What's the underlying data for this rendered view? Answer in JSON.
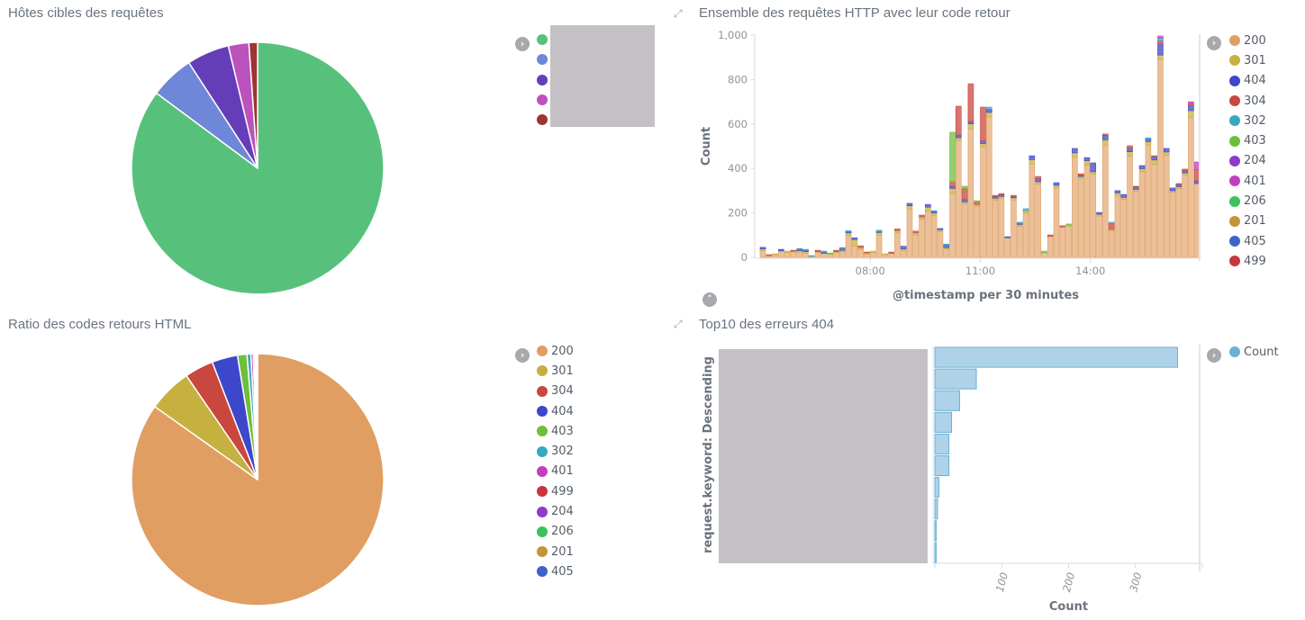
{
  "panels": {
    "hosts": {
      "title": "Hôtes cibles des requêtes"
    },
    "requests": {
      "title": "Ensemble des requêtes HTTP avec leur code retour"
    },
    "ratio": {
      "title": "Ratio des codes retours HTML"
    },
    "top404": {
      "title": "Top10 des erreurs 404"
    }
  },
  "colors": {
    "200": "#e09e62",
    "301": "#c6b03f",
    "404": "#3d47c9",
    "304": "#c9473e",
    "302": "#36a8c0",
    "403": "#6dbf3c",
    "204": "#8e3bc9",
    "401": "#c23fbd",
    "206": "#3cc15b",
    "201": "#c4943a",
    "405": "#3c63c9",
    "499": "#c8353e",
    "count": "#6baed6"
  },
  "chart_data": [
    {
      "type": "pie",
      "title": "Hôtes cibles des requêtes",
      "labels_redacted": true,
      "slices": [
        {
          "label": "",
          "value": 84.5,
          "color": "#57c17b"
        },
        {
          "label": "",
          "value": 5.6,
          "color": "#6f87d8"
        },
        {
          "label": "",
          "value": 5.4,
          "color": "#663db8"
        },
        {
          "label": "",
          "value": 2.6,
          "color": "#bc52bc"
        },
        {
          "label": "",
          "value": 1.1,
          "color": "#9e3533"
        }
      ]
    },
    {
      "type": "bar",
      "stacked": true,
      "title": "Ensemble des requêtes HTTP avec leur code retour",
      "xlabel": "@timestamp per 30 minutes",
      "ylabel": "Count",
      "ylim": [
        0,
        1000
      ],
      "yticks": [
        "0",
        "200",
        "400",
        "600",
        "800",
        "1,000"
      ],
      "yticks_values": [
        0,
        200,
        400,
        600,
        800,
        1000
      ],
      "xticks": [
        {
          "label": "08:00",
          "index": 18
        },
        {
          "label": "11:00",
          "index": 36
        },
        {
          "label": "14:00",
          "index": 54
        }
      ],
      "legend": [
        "200",
        "301",
        "404",
        "304",
        "302",
        "403",
        "204",
        "401",
        "206",
        "201",
        "405",
        "499"
      ],
      "legend_position": "right",
      "series_order": [
        "200",
        "301",
        "404",
        "304",
        "302",
        "403",
        "401"
      ],
      "bars": [
        {
          "200": 30,
          "301": 8,
          "404": 7
        },
        {
          "200": 8,
          "304": 4
        },
        {
          "200": 12,
          "301": 4
        },
        {
          "200": 26,
          "301": 4,
          "404": 6
        },
        {
          "200": 22,
          "301": 6
        },
        {
          "200": 24,
          "301": 4,
          "304": 4
        },
        {
          "200": 24,
          "301": 6,
          "404": 8,
          "302": 2
        },
        {
          "200": 20,
          "301": 6,
          "404": 8,
          "302": 2
        },
        {
          "200": 4,
          "302": 4
        },
        {
          "200": 22,
          "301": 4,
          "304": 6
        },
        {
          "200": 18,
          "404": 6,
          "302": 4
        },
        {
          "200": 14,
          "403": 6
        },
        {
          "200": 22,
          "301": 4,
          "304": 6
        },
        {
          "200": 26,
          "301": 6,
          "404": 10,
          "302": 2
        },
        {
          "200": 98,
          "301": 12,
          "404": 6,
          "302": 4
        },
        {
          "200": 50,
          "301": 30,
          "404": 8
        },
        {
          "200": 36,
          "301": 8,
          "304": 8
        },
        {
          "200": 14,
          "301": 6,
          "304": 4
        },
        {
          "200": 22,
          "301": 6
        },
        {
          "200": 100,
          "301": 12,
          "404": 6,
          "302": 4
        },
        {
          "200": 12,
          "301": 4
        },
        {
          "200": 18,
          "304": 6
        },
        {
          "200": 110,
          "301": 10,
          "304": 8
        },
        {
          "200": 30,
          "301": 8,
          "404": 12
        },
        {
          "200": 218,
          "301": 14,
          "404": 11
        },
        {
          "200": 100,
          "301": 10,
          "304": 8
        },
        {
          "200": 172,
          "301": 10,
          "304": 8
        },
        {
          "200": 208,
          "301": 18,
          "404": 12
        },
        {
          "200": 190,
          "301": 10,
          "404": 8,
          "302": 2
        },
        {
          "200": 116,
          "301": 8,
          "404": 6
        },
        {
          "200": 38,
          "301": 6,
          "404": 12,
          "302": 4
        },
        {
          "200": 288,
          "301": 22,
          "404": 10,
          "304": 20,
          "403": 223
        },
        {
          "200": 526,
          "301": 12,
          "404": 12,
          "304": 130
        },
        {
          "200": 240,
          "301": 10,
          "404": 10,
          "304": 50,
          "403": 10
        },
        {
          "200": 579,
          "301": 22,
          "404": 10,
          "304": 170
        },
        {
          "200": 230,
          "301": 8,
          "304": 12,
          "403": 5
        },
        {
          "200": 498,
          "301": 14,
          "404": 12,
          "304": 152
        },
        {
          "200": 632,
          "301": 20,
          "404": 14,
          "302": 10
        },
        {
          "200": 256,
          "301": 10,
          "404": 8,
          "304": 5
        },
        {
          "200": 264,
          "301": 10,
          "404": 8,
          "304": 5
        },
        {
          "200": 88,
          "404": 5
        },
        {
          "200": 258,
          "301": 10,
          "404": 6,
          "304": 5
        },
        {
          "200": 140,
          "301": 8,
          "404": 6,
          "302": 4
        },
        {
          "200": 200,
          "301": 10,
          "302": 9
        },
        {
          "200": 420,
          "301": 20,
          "404": 17
        },
        {
          "200": 330,
          "301": 10,
          "404": 14,
          "304": 10
        },
        {
          "200": 20,
          "403": 8
        },
        {
          "200": 94,
          "304": 7
        },
        {
          "200": 312,
          "301": 12,
          "404": 12
        },
        {
          "200": 134,
          "301": 4,
          "304": 4
        },
        {
          "200": 140,
          "301": 6,
          "403": 4
        },
        {
          "200": 450,
          "301": 20,
          "404": 20
        },
        {
          "200": 356,
          "301": 8,
          "404": 6,
          "304": 6
        },
        {
          "200": 415,
          "301": 20,
          "404": 14
        },
        {
          "200": 375,
          "301": 10,
          "404": 40
        },
        {
          "200": 186,
          "301": 8,
          "404": 8
        },
        {
          "200": 505,
          "301": 24,
          "404": 20,
          "304": 6
        },
        {
          "200": 120,
          "301": 6,
          "304": 26,
          "302": 6
        },
        {
          "200": 280,
          "301": 10,
          "404": 10
        },
        {
          "200": 260,
          "301": 10,
          "404": 13
        },
        {
          "200": 455,
          "301": 20,
          "404": 16,
          "304": 11
        },
        {
          "200": 296,
          "301": 10,
          "404": 10,
          "304": 4
        },
        {
          "200": 385,
          "301": 14,
          "404": 14
        },
        {
          "200": 505,
          "301": 16,
          "404": 12,
          "302": 5
        },
        {
          "200": 418,
          "301": 20,
          "404": 16,
          "304": 3
        },
        {
          "200": 890,
          "301": 20,
          "404": 50,
          "302": 12,
          "401": 10,
          "304": 14
        },
        {
          "200": 460,
          "301": 14,
          "404": 16
        },
        {
          "200": 294,
          "301": 6,
          "404": 12
        },
        {
          "200": 310,
          "301": 8,
          "404": 10,
          "304": 4
        },
        {
          "200": 370,
          "301": 10,
          "404": 10,
          "304": 7
        },
        {
          "200": 630,
          "301": 30,
          "404": 25,
          "304": 10,
          "401": 5
        },
        {
          "200": 332,
          "404": 12,
          "304": 50,
          "401": 35
        }
      ]
    },
    {
      "type": "pie",
      "title": "Ratio des codes retours HTML",
      "slices": [
        {
          "label": "200",
          "value": 84.8
        },
        {
          "label": "301",
          "value": 5.6
        },
        {
          "label": "304",
          "value": 3.7
        },
        {
          "label": "404",
          "value": 3.3
        },
        {
          "label": "403",
          "value": 1.2
        },
        {
          "label": "302",
          "value": 0.5
        },
        {
          "label": "401",
          "value": 0.3
        },
        {
          "label": "499",
          "value": 0.2
        },
        {
          "label": "204",
          "value": 0.15
        },
        {
          "label": "206",
          "value": 0.1
        },
        {
          "label": "201",
          "value": 0.05
        },
        {
          "label": "405",
          "value": 0.05
        }
      ],
      "legend_position": "right"
    },
    {
      "type": "bar",
      "orientation": "horizontal",
      "title": "Top10 des erreurs 404",
      "ylabel": "request.keyword: Descending",
      "xlabel": "Count",
      "xlim": [
        0,
        400
      ],
      "xticks": [
        "100",
        "200",
        "300"
      ],
      "xticks_values": [
        100,
        200,
        300
      ],
      "categories_redacted": true,
      "legend": [
        "Count"
      ],
      "values": [
        363,
        62,
        37,
        25,
        21,
        21,
        6,
        4,
        2,
        2
      ]
    }
  ],
  "icons": {
    "legend_toggle": "chevron-right-circle",
    "legend_collapse": "chevron-up-circle",
    "expand": "expand-arrows"
  }
}
